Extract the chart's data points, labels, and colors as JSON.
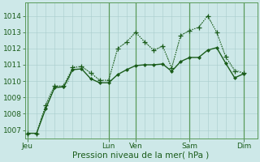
{
  "bg_color": "#cde8e8",
  "grid_color": "#b0d4d4",
  "line_color": "#1a5c1a",
  "ylabel": "Pression niveau de la mer( hPa )",
  "ylim": [
    1006.5,
    1014.8
  ],
  "yticks": [
    1007,
    1008,
    1009,
    1010,
    1011,
    1012,
    1013,
    1014
  ],
  "day_labels": [
    "Jeu",
    "",
    "Lun",
    "Ven",
    "",
    "Sam",
    "",
    "Dim"
  ],
  "day_tick_labels": [
    "Jeu",
    "Lun",
    "Ven",
    "Sam",
    "Dim"
  ],
  "day_tick_pos": [
    0,
    9,
    12,
    18,
    24
  ],
  "xlim": [
    -0.3,
    25.5
  ],
  "n_hours": 25,
  "series1_x": [
    0,
    0.5,
    1,
    1.5,
    2,
    2.5,
    3,
    3.5,
    4,
    4.5,
    5,
    5.5,
    6,
    6.5,
    7,
    7.5,
    8,
    8.5,
    9,
    9.5,
    10,
    10.5,
    11,
    11.5,
    12,
    12.5,
    13,
    13.5,
    14,
    14.5,
    15,
    15.5,
    16,
    16.5,
    17,
    17.5,
    18,
    18.5,
    19,
    19.5,
    20,
    20.5,
    21,
    21.5,
    22,
    22.5,
    23,
    23.5,
    24
  ],
  "series1_y": [
    1006.8,
    1006.8,
    1006.8,
    1007.7,
    1008.5,
    1009.2,
    1009.7,
    1009.7,
    1009.7,
    1009.95,
    1010.85,
    1010.85,
    1010.9,
    1010.7,
    1010.5,
    1010.3,
    1010.05,
    1010.05,
    1010.05,
    1011.0,
    1012.0,
    1012.2,
    1012.4,
    1012.7,
    1013.0,
    1012.7,
    1012.4,
    1012.15,
    1011.9,
    1012.0,
    1012.15,
    1011.5,
    1010.8,
    1011.8,
    1012.8,
    1012.95,
    1013.1,
    1013.2,
    1013.3,
    1013.65,
    1014.0,
    1013.5,
    1013.0,
    1012.25,
    1011.5,
    1011.1,
    1010.7,
    1010.6,
    1010.5
  ],
  "series2_x": [
    0,
    1,
    2,
    3,
    4,
    5,
    6,
    7,
    8,
    9,
    10,
    11,
    12,
    13,
    14,
    15,
    16,
    17,
    18,
    19,
    20,
    21,
    22,
    23,
    24
  ],
  "series2_y": [
    1006.8,
    1006.8,
    1008.5,
    1009.7,
    1009.7,
    1010.85,
    1010.9,
    1010.5,
    1010.05,
    1010.05,
    1012.0,
    1012.4,
    1013.0,
    1012.4,
    1011.9,
    1012.15,
    1010.8,
    1012.8,
    1013.1,
    1013.3,
    1014.0,
    1013.0,
    1011.5,
    1010.6,
    1010.5
  ],
  "series3_x": [
    0,
    1,
    2,
    3,
    4,
    5,
    6,
    7,
    8,
    9,
    10,
    11,
    12,
    13,
    14,
    15,
    16,
    17,
    18,
    19,
    20,
    21,
    22,
    23,
    24
  ],
  "series3_y": [
    1006.8,
    1006.8,
    1008.3,
    1009.6,
    1009.65,
    1010.7,
    1010.75,
    1010.15,
    1009.9,
    1009.9,
    1010.4,
    1010.7,
    1010.95,
    1011.0,
    1011.0,
    1011.05,
    1010.6,
    1011.2,
    1011.45,
    1011.45,
    1011.9,
    1012.05,
    1011.1,
    1010.2,
    1010.45
  ],
  "tick_fontsize": 6.5,
  "label_fontsize": 7.5
}
